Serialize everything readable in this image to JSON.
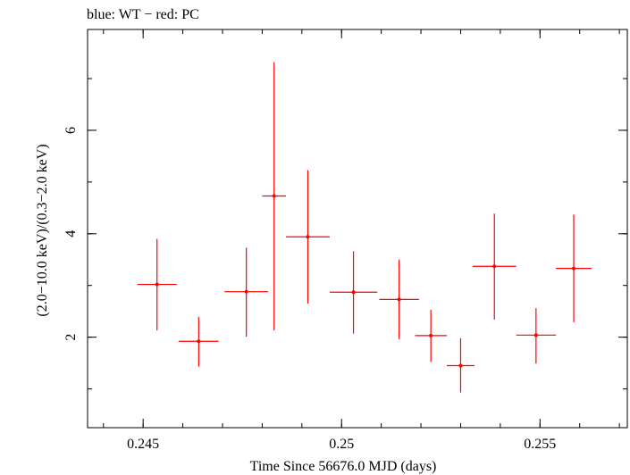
{
  "chart_data": {
    "type": "scatter",
    "title": "blue: WT − red: PC",
    "xlabel": "Time Since 56676.0 MJD (days)",
    "ylabel": "(2.0−10.0 keV)/(0.3−2.0 keV)",
    "xlim": [
      0.2436,
      0.2572
    ],
    "ylim": [
      0.25,
      7.95
    ],
    "x_ticks": [
      {
        "value": 0.245,
        "label": "0.245"
      },
      {
        "value": 0.25,
        "label": "0.25"
      },
      {
        "value": 0.255,
        "label": "0.255"
      }
    ],
    "x_minor_step": 0.001,
    "y_ticks": [
      {
        "value": 2,
        "label": "2"
      },
      {
        "value": 4,
        "label": "4"
      },
      {
        "value": 6,
        "label": "6"
      }
    ],
    "y_minor_step": 1,
    "grid": false,
    "series": [
      {
        "color": "#ff0000",
        "points": [
          {
            "x": 0.24535,
            "xerr": 0.0005,
            "y": 3.02,
            "ylo": 2.13,
            "yhi": 3.9
          },
          {
            "x": 0.2464,
            "xerr": 0.0005,
            "y": 1.92,
            "ylo": 1.43,
            "yhi": 2.39
          },
          {
            "x": 0.2476,
            "xerr": 0.00055,
            "y": 2.88,
            "ylo": 2.01,
            "yhi": 3.73
          },
          {
            "x": 0.2483,
            "xerr": 0.0003,
            "y": 4.73,
            "ylo": 2.13,
            "yhi": 7.32
          },
          {
            "x": 0.24915,
            "xerr": 0.00055,
            "y": 3.94,
            "ylo": 2.65,
            "yhi": 5.23
          },
          {
            "x": 0.2503,
            "xerr": 0.0006,
            "y": 2.87,
            "ylo": 2.07,
            "yhi": 3.66
          },
          {
            "x": 0.25145,
            "xerr": 0.0005,
            "y": 2.73,
            "ylo": 1.96,
            "yhi": 3.5
          },
          {
            "x": 0.25225,
            "xerr": 0.0004,
            "y": 2.03,
            "ylo": 1.52,
            "yhi": 2.53
          },
          {
            "x": 0.253,
            "xerr": 0.00035,
            "y": 1.45,
            "ylo": 0.93,
            "yhi": 1.98
          },
          {
            "x": 0.25385,
            "xerr": 0.00055,
            "y": 3.37,
            "ylo": 2.34,
            "yhi": 4.39
          },
          {
            "x": 0.2549,
            "xerr": 0.0005,
            "y": 2.04,
            "ylo": 1.49,
            "yhi": 2.56
          },
          {
            "x": 0.25585,
            "xerr": 0.00045,
            "y": 3.33,
            "ylo": 2.29,
            "yhi": 4.37
          }
        ]
      }
    ]
  }
}
